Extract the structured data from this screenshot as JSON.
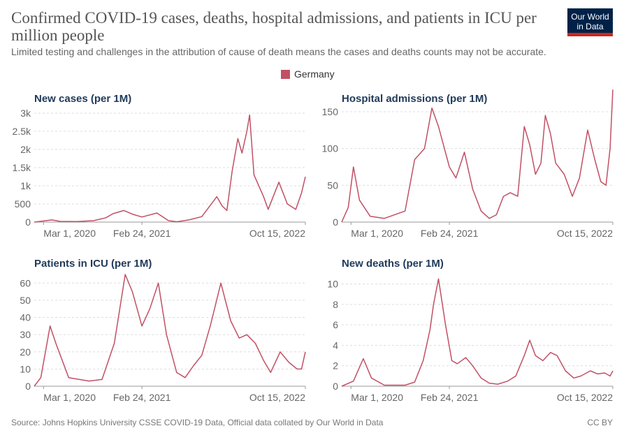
{
  "header": {
    "title": "Confirmed COVID-19 cases, deaths, hospital admissions, and patients in ICU per million people",
    "subtitle": "Limited testing and challenges in the attribution of cause of death means the cases and deaths counts may not be accurate.",
    "logo_line1": "Our World",
    "logo_line2": "in Data"
  },
  "legend": {
    "label": "Germany",
    "color": "#c15065"
  },
  "footer": {
    "source": "Source: Johns Hopkins University CSSE COVID-19 Data, Official data collated by Our World in Data",
    "license": "CC BY"
  },
  "chart_data": [
    {
      "type": "line",
      "title": "New cases (per 1M)",
      "x_ticks": [
        "Mar 1, 2020",
        "Feb 24, 2021",
        "Oct 15, 2022"
      ],
      "x_range": [
        "2020-01-27",
        "2022-10-15"
      ],
      "y_ticks": [
        "0",
        "500",
        "1k",
        "1.5k",
        "2k",
        "2.5k",
        "3k"
      ],
      "ylim": [
        0,
        3000
      ],
      "grid": true,
      "series": [
        {
          "name": "Germany",
          "x": [
            "2020-01-27",
            "2020-03-01",
            "2020-04-01",
            "2020-05-01",
            "2020-07-01",
            "2020-09-01",
            "2020-10-15",
            "2020-11-10",
            "2020-12-20",
            "2021-01-20",
            "2021-02-24",
            "2021-04-20",
            "2021-06-01",
            "2021-07-01",
            "2021-08-15",
            "2021-10-01",
            "2021-11-25",
            "2021-12-15",
            "2022-01-01",
            "2022-01-20",
            "2022-02-10",
            "2022-02-25",
            "2022-03-15",
            "2022-03-25",
            "2022-04-10",
            "2022-05-15",
            "2022-06-01",
            "2022-07-10",
            "2022-08-10",
            "2022-09-10",
            "2022-10-01",
            "2022-10-15"
          ],
          "values": [
            0,
            30,
            60,
            20,
            15,
            40,
            120,
            230,
            320,
            220,
            140,
            250,
            40,
            10,
            60,
            150,
            700,
            440,
            320,
            1400,
            2300,
            1900,
            2500,
            2950,
            1300,
            700,
            350,
            1100,
            500,
            350,
            800,
            1250
          ]
        }
      ]
    },
    {
      "type": "line",
      "title": "Hospital admissions (per 1M)",
      "x_ticks": [
        "Mar 1, 2020",
        "Feb 24, 2021",
        "Oct 15, 2022"
      ],
      "x_range": [
        "2020-01-27",
        "2022-10-15"
      ],
      "y_ticks": [
        "0",
        "50",
        "100",
        "150"
      ],
      "ylim": [
        0,
        150
      ],
      "grid": true,
      "series": [
        {
          "name": "Germany",
          "x": [
            "2020-01-27",
            "2020-02-20",
            "2020-03-10",
            "2020-04-01",
            "2020-05-10",
            "2020-07-01",
            "2020-09-15",
            "2020-10-20",
            "2020-11-25",
            "2020-12-22",
            "2021-01-15",
            "2021-02-24",
            "2021-03-20",
            "2021-04-20",
            "2021-05-20",
            "2021-06-20",
            "2021-07-20",
            "2021-08-15",
            "2021-09-10",
            "2021-10-05",
            "2021-11-01",
            "2021-11-25",
            "2021-12-15",
            "2022-01-05",
            "2022-01-25",
            "2022-02-10",
            "2022-03-01",
            "2022-03-20",
            "2022-04-20",
            "2022-05-20",
            "2022-06-15",
            "2022-07-15",
            "2022-08-10",
            "2022-09-01",
            "2022-09-20",
            "2022-10-05",
            "2022-10-15"
          ],
          "values": [
            0,
            20,
            75,
            30,
            8,
            5,
            15,
            85,
            100,
            155,
            130,
            75,
            60,
            95,
            45,
            15,
            5,
            10,
            35,
            40,
            35,
            130,
            105,
            65,
            80,
            145,
            120,
            80,
            65,
            35,
            60,
            125,
            85,
            55,
            50,
            100,
            180
          ]
        }
      ]
    },
    {
      "type": "line",
      "title": "Patients in ICU (per 1M)",
      "x_ticks": [
        "Mar 1, 2020",
        "Feb 24, 2021",
        "Oct 15, 2022"
      ],
      "x_range": [
        "2020-01-27",
        "2022-10-15"
      ],
      "y_ticks": [
        "0",
        "10",
        "20",
        "30",
        "40",
        "50",
        "60"
      ],
      "ylim": [
        0,
        65
      ],
      "grid": true,
      "series": [
        {
          "name": "Germany",
          "x": [
            "2020-01-27",
            "2020-02-20",
            "2020-03-25",
            "2020-04-15",
            "2020-06-01",
            "2020-08-15",
            "2020-10-01",
            "2020-11-15",
            "2020-12-25",
            "2021-01-20",
            "2021-02-24",
            "2021-03-25",
            "2021-04-25",
            "2021-05-25",
            "2021-07-01",
            "2021-08-01",
            "2021-09-01",
            "2021-10-01",
            "2021-11-01",
            "2021-12-10",
            "2022-01-15",
            "2022-02-15",
            "2022-03-15",
            "2022-04-15",
            "2022-05-15",
            "2022-06-10",
            "2022-07-15",
            "2022-08-15",
            "2022-09-15",
            "2022-10-01",
            "2022-10-15"
          ],
          "values": [
            0,
            5,
            35,
            25,
            5,
            3,
            4,
            25,
            65,
            55,
            35,
            45,
            60,
            30,
            8,
            5,
            12,
            18,
            35,
            60,
            38,
            28,
            30,
            25,
            15,
            8,
            20,
            14,
            10,
            10,
            20
          ]
        }
      ]
    },
    {
      "type": "line",
      "title": "New deaths (per 1M)",
      "x_ticks": [
        "Mar 1, 2020",
        "Feb 24, 2021",
        "Oct 15, 2022"
      ],
      "x_range": [
        "2020-01-27",
        "2022-10-15"
      ],
      "y_ticks": [
        "0",
        "2",
        "4",
        "6",
        "8",
        "10"
      ],
      "ylim": [
        0,
        11
      ],
      "grid": true,
      "series": [
        {
          "name": "Germany",
          "x": [
            "2020-01-27",
            "2020-03-10",
            "2020-04-15",
            "2020-05-15",
            "2020-07-01",
            "2020-09-15",
            "2020-10-20",
            "2020-11-20",
            "2020-12-15",
            "2020-12-28",
            "2021-01-15",
            "2021-02-10",
            "2021-03-05",
            "2021-03-25",
            "2021-04-25",
            "2021-05-20",
            "2021-06-20",
            "2021-07-20",
            "2021-08-20",
            "2021-09-25",
            "2021-10-25",
            "2021-11-25",
            "2021-12-15",
            "2022-01-05",
            "2022-02-01",
            "2022-03-01",
            "2022-03-25",
            "2022-04-25",
            "2022-05-25",
            "2022-06-20",
            "2022-07-25",
            "2022-08-20",
            "2022-09-15",
            "2022-10-05",
            "2022-10-15"
          ],
          "values": [
            0,
            0.5,
            2.7,
            0.8,
            0.1,
            0.1,
            0.4,
            2.5,
            5.5,
            8,
            10.5,
            6,
            2.5,
            2.2,
            2.8,
            2,
            0.8,
            0.3,
            0.2,
            0.5,
            1,
            3,
            4.5,
            3,
            2.5,
            3.3,
            3,
            1.5,
            0.8,
            1,
            1.5,
            1.2,
            1.3,
            1,
            1.5
          ]
        }
      ]
    }
  ]
}
